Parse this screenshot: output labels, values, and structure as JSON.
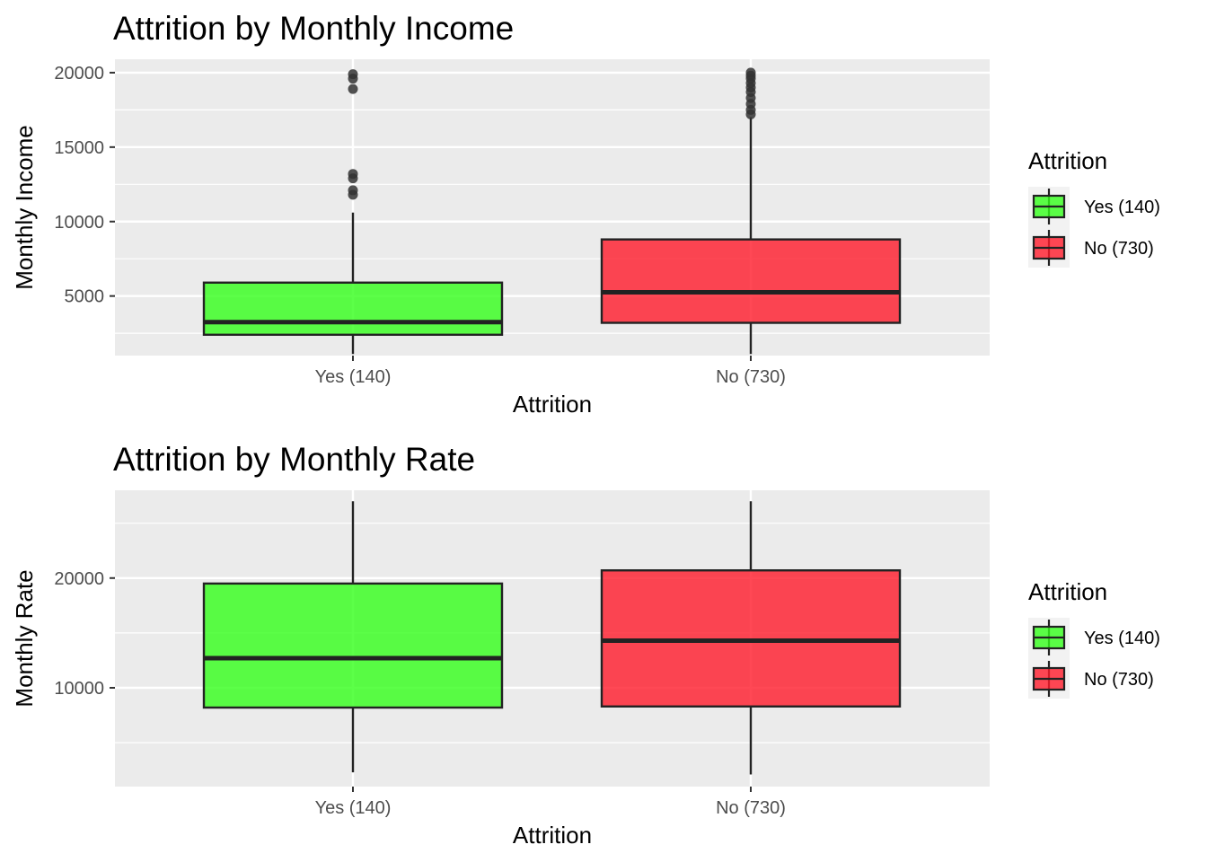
{
  "chart_data": [
    {
      "type": "box",
      "title": "Attrition by Monthly Income",
      "xlabel": "Attrition",
      "ylabel": "Monthly Income",
      "ylim": [
        1000,
        20900
      ],
      "yticks": [
        5000,
        10000,
        15000,
        20000
      ],
      "categories": [
        "Yes (140)",
        "No (730)"
      ],
      "series": [
        {
          "name": "Yes (140)",
          "color": "#33FF1A",
          "min": 1100,
          "q1": 2400,
          "median": 3250,
          "q3": 5900,
          "max": 10600,
          "outliers": [
            11800,
            12100,
            12900,
            13200,
            18900,
            19600,
            19900
          ]
        },
        {
          "name": "No (730)",
          "color": "#FF1A2A",
          "min": 1100,
          "q1": 3200,
          "median": 5250,
          "q3": 8800,
          "max": 17000,
          "outliers": [
            17200,
            17500,
            17900,
            18300,
            18700,
            19000,
            19300,
            19600,
            19800,
            20000
          ]
        }
      ],
      "legend": {
        "title": "Attrition",
        "items": [
          "Yes (140)",
          "No (730)"
        ],
        "position": "right"
      },
      "grid": true
    },
    {
      "type": "box",
      "title": "Attrition by Monthly Rate",
      "xlabel": "Attrition",
      "ylabel": "Monthly Rate",
      "ylim": [
        1000,
        28000
      ],
      "yticks": [
        10000,
        20000
      ],
      "categories": [
        "Yes (140)",
        "No (730)"
      ],
      "series": [
        {
          "name": "Yes (140)",
          "color": "#33FF1A",
          "min": 2300,
          "q1": 8200,
          "median": 12700,
          "q3": 19500,
          "max": 27000,
          "outliers": []
        },
        {
          "name": "No (730)",
          "color": "#FF1A2A",
          "min": 2100,
          "q1": 8300,
          "median": 14300,
          "q3": 20700,
          "max": 27000,
          "outliers": []
        }
      ],
      "legend": {
        "title": "Attrition",
        "items": [
          "Yes (140)",
          "No (730)"
        ],
        "position": "right"
      },
      "grid": true
    }
  ]
}
